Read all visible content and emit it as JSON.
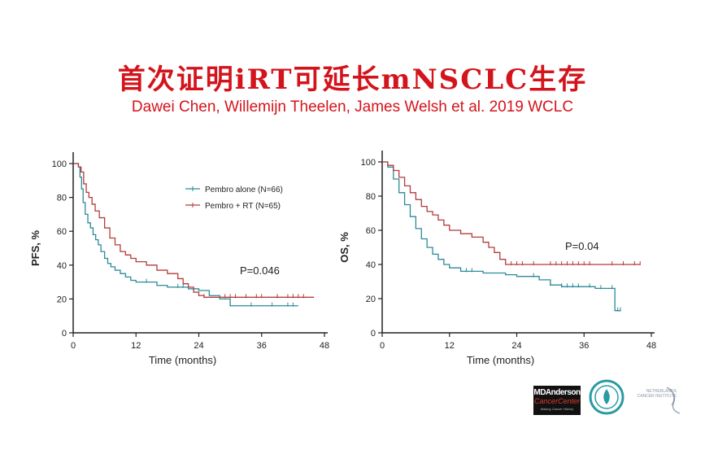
{
  "title": "首次证明iRT可延长mNSCLC生存",
  "subtitle": "Dawei Chen, Willemijn Theelen, James Welsh  et al. 2019 WCLC",
  "colors": {
    "title": "#d4141c",
    "pembro_alone": "#2b8a9a",
    "pembro_rt": "#b53b3b",
    "axis": "#222222"
  },
  "logos": {
    "mdanderson_line1": "MDAnderson",
    "mdanderson_line2": "CancerCenter",
    "mdanderson_line3": "Making Cancer History",
    "nki": "NETHERLANDS CANCER INSTITUTE"
  },
  "chart_data": [
    {
      "type": "line",
      "subtype": "kaplan-meier",
      "title": "",
      "xlabel": "Time (months)",
      "ylabel": "PFS, %",
      "xlim": [
        0,
        48
      ],
      "ylim": [
        0,
        100
      ],
      "xticks": [
        0,
        12,
        24,
        36,
        48
      ],
      "yticks": [
        0,
        20,
        40,
        60,
        80,
        100
      ],
      "annotation": "P=0.046",
      "legend": {
        "position": "top-center",
        "entries": [
          "Pembro alone  (N=66)",
          "Pembro + RT  (N=65)"
        ]
      },
      "series": [
        {
          "name": "Pembro alone  (N=66)",
          "color": "#2b8a9a",
          "x": [
            0,
            1,
            1.3,
            1.6,
            1.9,
            2.3,
            2.8,
            3.3,
            3.8,
            4.3,
            4.8,
            5.3,
            6,
            6.6,
            7.2,
            8,
            9,
            10,
            11,
            12,
            14,
            16,
            18,
            20,
            22,
            24,
            26,
            28,
            30,
            32,
            34,
            36,
            38,
            40,
            43
          ],
          "y": [
            100,
            98,
            92,
            85,
            77,
            70,
            65,
            62,
            58,
            55,
            52,
            48,
            44,
            41,
            39,
            37,
            35,
            33,
            31,
            30,
            30,
            28,
            27,
            27,
            26,
            25,
            22,
            20,
            16,
            16,
            16,
            16,
            16,
            16,
            16
          ],
          "censor_x": [
            14,
            20,
            21,
            30,
            34,
            38,
            41,
            42
          ]
        },
        {
          "name": "Pembro + RT  (N=65)",
          "color": "#b53b3b",
          "x": [
            0,
            1,
            1.5,
            2,
            2.5,
            3,
            3.6,
            4.2,
            5,
            6,
            7,
            8,
            9,
            10,
            11,
            12,
            14,
            16,
            18,
            20,
            21,
            22,
            23,
            24,
            25,
            27,
            46
          ],
          "y": [
            100,
            98,
            95,
            88,
            83,
            80,
            76,
            72,
            68,
            62,
            56,
            52,
            48,
            46,
            44,
            42,
            40,
            37,
            35,
            32,
            29,
            27,
            24,
            22,
            21,
            21,
            21
          ],
          "censor_x": [
            25,
            29,
            30,
            31,
            33,
            35,
            36,
            39,
            41,
            42,
            43,
            44
          ]
        }
      ]
    },
    {
      "type": "line",
      "subtype": "kaplan-meier",
      "title": "",
      "xlabel": "Time (months)",
      "ylabel": "OS, %",
      "xlim": [
        0,
        48
      ],
      "ylim": [
        0,
        100
      ],
      "xticks": [
        0,
        12,
        24,
        36,
        48
      ],
      "yticks": [
        0,
        20,
        40,
        60,
        80,
        100
      ],
      "annotation": "P=0.04",
      "series": [
        {
          "name": "Pembro alone",
          "color": "#2b8a9a",
          "x": [
            0,
            1,
            2,
            3,
            4,
            5,
            6,
            7,
            8,
            9,
            10,
            11,
            12,
            14,
            16,
            18,
            20,
            22,
            24,
            26,
            28,
            30,
            32,
            34,
            36,
            38,
            40,
            41.5,
            42.5
          ],
          "y": [
            100,
            97,
            90,
            82,
            75,
            68,
            61,
            55,
            50,
            46,
            43,
            40,
            38,
            36,
            36,
            35,
            35,
            34,
            33,
            33,
            31,
            28,
            27,
            27,
            27,
            26,
            26,
            13,
            13
          ],
          "censor_x": [
            15,
            16,
            27,
            30,
            32,
            33,
            34,
            35,
            37,
            39,
            41,
            42,
            42.5
          ]
        },
        {
          "name": "Pembro + RT",
          "color": "#b53b3b",
          "x": [
            0,
            1,
            2,
            3,
            4,
            5,
            6,
            7,
            8,
            9,
            10,
            11,
            12,
            14,
            16,
            18,
            19,
            20,
            21,
            22,
            24,
            26,
            46
          ],
          "y": [
            100,
            98,
            95,
            91,
            86,
            82,
            78,
            74,
            71,
            69,
            66,
            63,
            60,
            58,
            56,
            53,
            50,
            47,
            43,
            40,
            40,
            40,
            40
          ],
          "censor_x": [
            23,
            24,
            25,
            27,
            30,
            31,
            32,
            33,
            34,
            35,
            36,
            37,
            41,
            43,
            45,
            46
          ]
        }
      ]
    }
  ]
}
